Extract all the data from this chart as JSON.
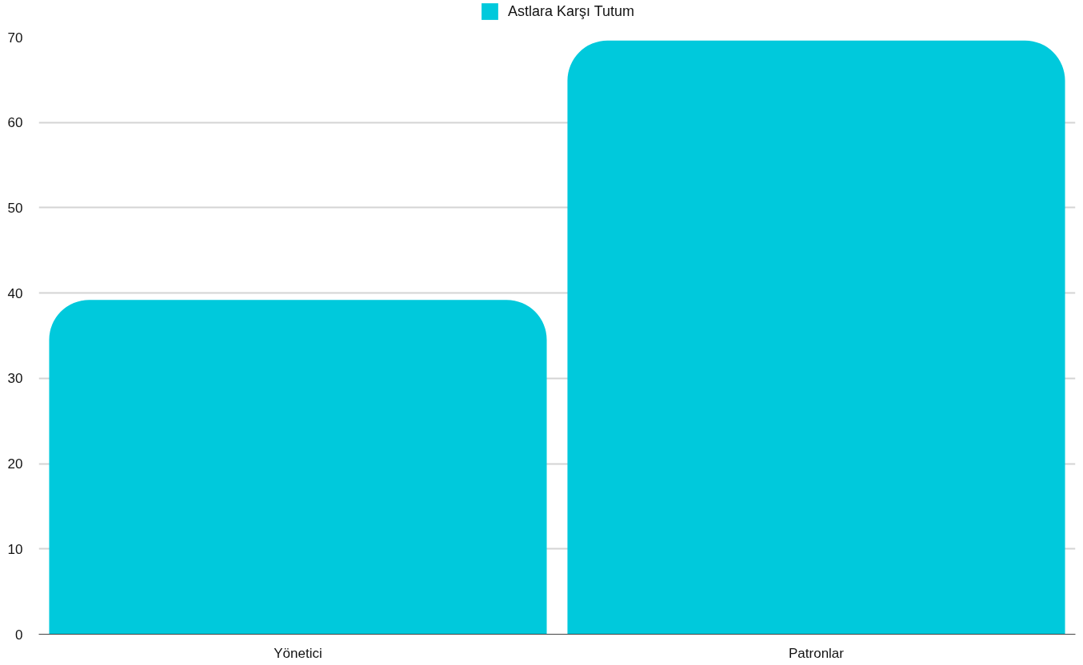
{
  "chart_data": {
    "type": "bar",
    "categories": [
      "Yönetici",
      "Patronlar"
    ],
    "series": [
      {
        "name": "Astlara Karşı Tutum",
        "color": "#00c9dc",
        "values": [
          39.2,
          69.6
        ]
      }
    ],
    "ylim": [
      0,
      70
    ],
    "yticks": [
      0,
      10,
      20,
      30,
      40,
      50,
      60,
      70
    ],
    "grid": "y",
    "legend": "top"
  }
}
